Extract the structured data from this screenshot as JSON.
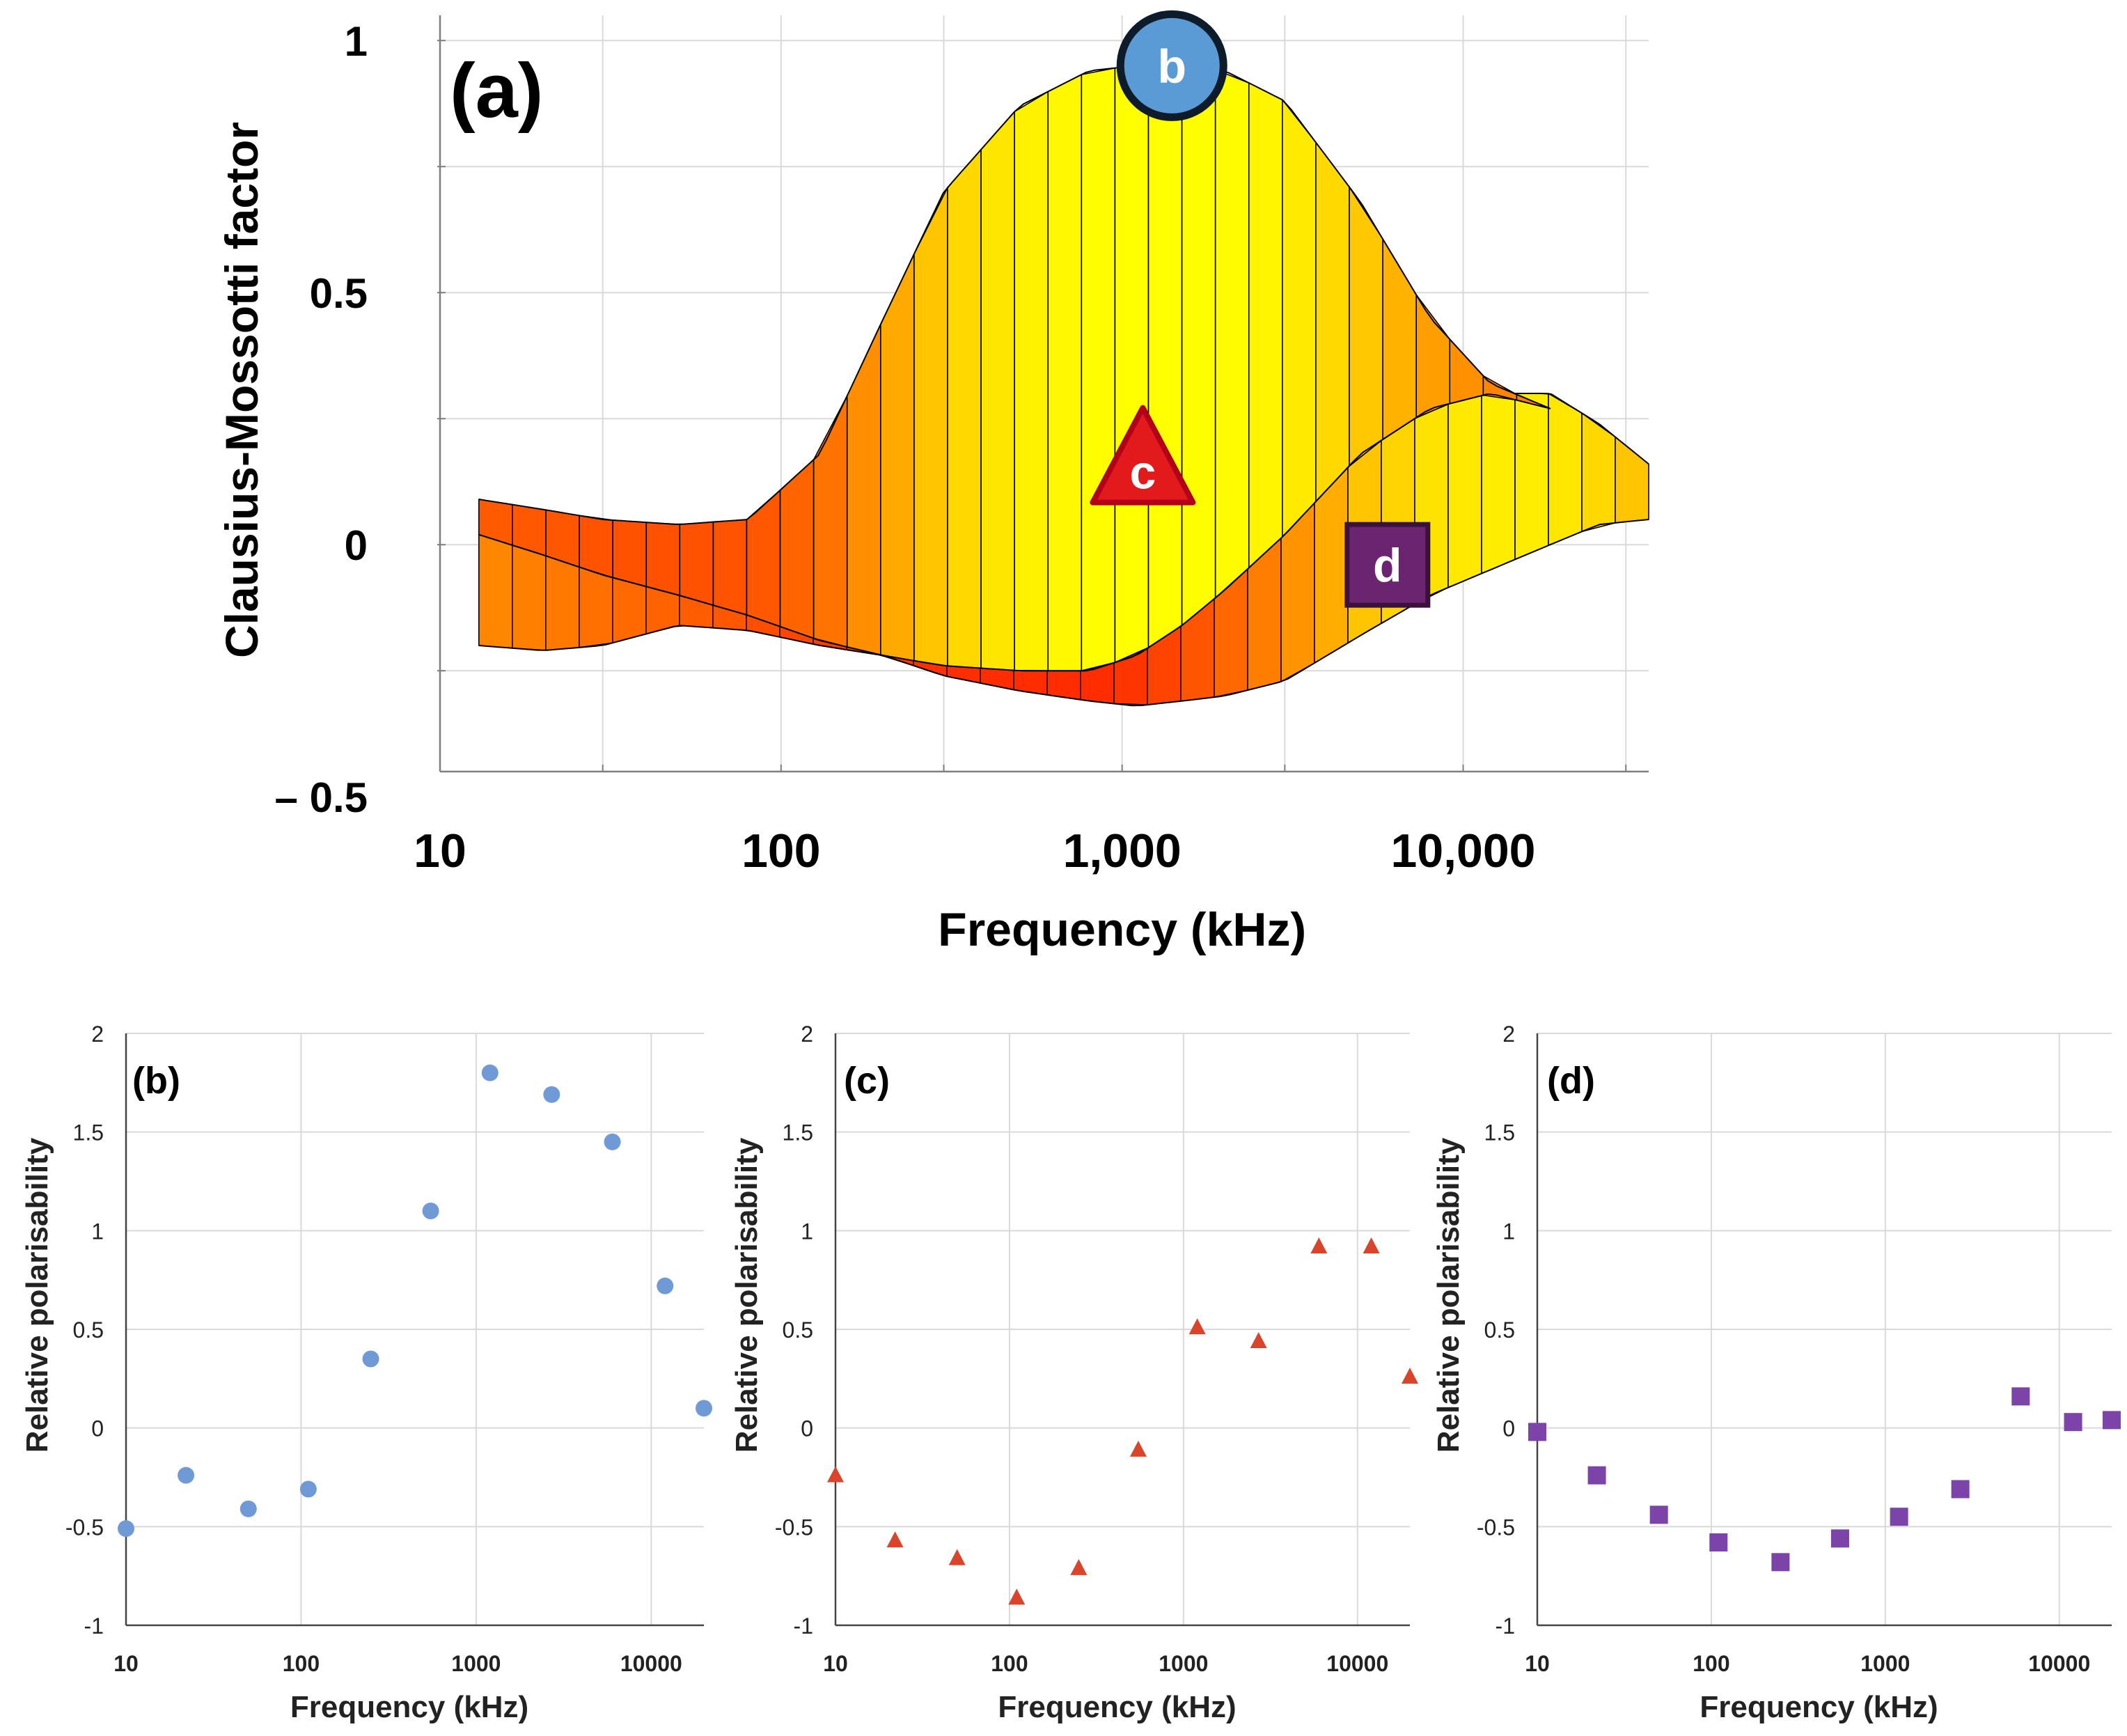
{
  "colors": {
    "yellow": "#ffff00",
    "orange": "#ff8c00",
    "red": "#ff1a00",
    "grid": "#d9d9d9",
    "axis": "#7f7f7f",
    "band_line": "#000000",
    "marker_b": "#5b9bd5",
    "marker_b_edge": "#0d1b2a",
    "marker_c": "#e31a1c",
    "marker_c_edge": "#b2001a",
    "marker_d": "#6b2570",
    "marker_d_edge": "#3a103d",
    "scatter_b": "#6f9ad6",
    "scatter_c": "#d9452b",
    "scatter_d": "#7c44a8"
  },
  "chart_data": [
    {
      "id": "a",
      "type": "area",
      "panel_label": "(a)",
      "title": "",
      "xlabel": "Frequency (kHz)",
      "ylabel": "Clausius-Mossotti factor",
      "xscale": "log",
      "xlim": [
        10,
        35000
      ],
      "ylim": [
        -0.5,
        1.0
      ],
      "x_ticks": [
        10,
        100,
        1000,
        10000
      ],
      "x_tick_labels": [
        "10",
        "100",
        "1,000",
        "10,000"
      ],
      "y_ticks": [
        1,
        0.5,
        0,
        -0.5
      ],
      "y_tick_labels": [
        "1",
        "0.5",
        "0",
        "– 0.5"
      ],
      "grid": true,
      "band_x_start": 13,
      "band_x_end": 35000,
      "band_count": 35,
      "series": [
        {
          "name": "b",
          "marker": "circle",
          "marker_label": "b",
          "marker_at": [
            1400,
            0.95
          ],
          "x": [
            13,
            20,
            30,
            50,
            80,
            130,
            200,
            300,
            500,
            800,
            1100,
            1500,
            2000,
            3000,
            5000,
            8000,
            12000,
            18000
          ],
          "upper": [
            0.09,
            0.07,
            0.05,
            0.04,
            0.05,
            0.18,
            0.45,
            0.7,
            0.87,
            0.94,
            0.95,
            0.95,
            0.94,
            0.88,
            0.68,
            0.45,
            0.32,
            0.27
          ],
          "lower": [
            0.02,
            -0.02,
            -0.06,
            -0.1,
            -0.14,
            -0.19,
            -0.22,
            -0.24,
            -0.25,
            -0.25,
            -0.22,
            -0.16,
            -0.09,
            0.02,
            0.18,
            0.27,
            0.3,
            0.27
          ]
        },
        {
          "name": "c",
          "marker": "triangle",
          "marker_label": "c",
          "marker_at": [
            1150,
            0.15
          ],
          "x": [
            13,
            20,
            30,
            50,
            80,
            130,
            200,
            300,
            500,
            800,
            1100,
            1500,
            2000,
            3000,
            5000,
            8000,
            12000,
            18000
          ],
          "upper": [
            0.09,
            0.07,
            0.05,
            0.04,
            0.05,
            0.18,
            0.45,
            0.7,
            0.87,
            0.94,
            0.95,
            0.95,
            0.94,
            0.88,
            0.68,
            0.45,
            0.32,
            0.27
          ],
          "lower": [
            0.02,
            -0.02,
            -0.06,
            -0.1,
            -0.14,
            -0.19,
            -0.22,
            -0.24,
            -0.25,
            -0.25,
            -0.22,
            -0.16,
            -0.09,
            0.02,
            0.18,
            0.27,
            0.3,
            0.27
          ]
        },
        {
          "name": "d",
          "marker": "square",
          "marker_label": "d",
          "marker_at": [
            6000,
            -0.04
          ],
          "x": [
            13,
            20,
            30,
            50,
            80,
            130,
            200,
            300,
            500,
            800,
            1100,
            1500,
            2000,
            3000,
            5000,
            8000,
            12000,
            18000,
            25000,
            35000
          ],
          "upper": [
            0.02,
            -0.02,
            -0.06,
            -0.1,
            -0.14,
            -0.19,
            -0.22,
            -0.24,
            -0.25,
            -0.25,
            -0.22,
            -0.16,
            -0.09,
            0.02,
            0.18,
            0.27,
            0.3,
            0.3,
            0.24,
            0.16
          ],
          "lower": [
            -0.2,
            -0.21,
            -0.2,
            -0.16,
            -0.17,
            -0.2,
            -0.22,
            -0.26,
            -0.29,
            -0.31,
            -0.32,
            -0.31,
            -0.3,
            -0.27,
            -0.18,
            -0.1,
            -0.05,
            0.0,
            0.04,
            0.05
          ]
        }
      ]
    },
    {
      "id": "b",
      "type": "scatter",
      "panel_label": "(b)",
      "xlabel": "Frequency (kHz)",
      "ylabel": "Relative polarisability",
      "xscale": "log",
      "xlim": [
        10,
        20000
      ],
      "ylim": [
        -1,
        2
      ],
      "x_ticks": [
        10,
        100,
        1000,
        10000
      ],
      "x_tick_labels": [
        "10",
        "100",
        "1000",
        "10000"
      ],
      "y_ticks": [
        2,
        1.5,
        1,
        0.5,
        0,
        -0.5,
        -1
      ],
      "y_tick_labels": [
        "2",
        "1.5",
        "1",
        "0.5",
        "0",
        "-0.5",
        "-1"
      ],
      "grid": true,
      "marker": "circle",
      "x": [
        10,
        22,
        50,
        110,
        250,
        550,
        1200,
        2700,
        6000,
        12000,
        20000
      ],
      "y": [
        -0.51,
        -0.24,
        -0.41,
        -0.31,
        0.35,
        1.1,
        1.8,
        1.69,
        1.45,
        0.72,
        0.1
      ]
    },
    {
      "id": "c",
      "type": "scatter",
      "panel_label": "(c)",
      "xlabel": "Frequency (kHz)",
      "ylabel": "Relative polarisability",
      "xscale": "log",
      "xlim": [
        10,
        20000
      ],
      "ylim": [
        -1,
        2
      ],
      "x_ticks": [
        10,
        100,
        1000,
        10000
      ],
      "x_tick_labels": [
        "10",
        "100",
        "1000",
        "10000"
      ],
      "y_ticks": [
        2,
        1.5,
        1,
        0.5,
        0,
        -0.5,
        -1
      ],
      "y_tick_labels": [
        "2",
        "1.5",
        "1",
        "0.5",
        "0",
        "-0.5",
        "-1"
      ],
      "grid": true,
      "marker": "triangle",
      "x": [
        10,
        22,
        50,
        110,
        250,
        550,
        1200,
        2700,
        6000,
        12000,
        20000
      ],
      "y": [
        -0.24,
        -0.57,
        -0.66,
        -0.86,
        -0.71,
        -0.11,
        0.51,
        0.44,
        0.92,
        0.92,
        0.26
      ]
    },
    {
      "id": "d",
      "type": "scatter",
      "panel_label": "(d)",
      "xlabel": "Frequency (kHz)",
      "ylabel": "Relative polarisability",
      "xscale": "log",
      "xlim": [
        10,
        20000
      ],
      "ylim": [
        -1,
        2
      ],
      "x_ticks": [
        10,
        100,
        1000,
        10000
      ],
      "x_tick_labels": [
        "10",
        "100",
        "1000",
        "10000"
      ],
      "y_ticks": [
        2,
        1.5,
        1,
        0.5,
        0,
        -0.5,
        -1
      ],
      "y_tick_labels": [
        "2",
        "1.5",
        "1",
        "0.5",
        "0",
        "-0.5",
        "-1"
      ],
      "grid": true,
      "marker": "square",
      "x": [
        10,
        22,
        50,
        110,
        250,
        550,
        1200,
        2700,
        6000,
        12000,
        20000
      ],
      "y": [
        -0.02,
        -0.24,
        -0.44,
        -0.58,
        -0.68,
        -0.56,
        -0.45,
        -0.31,
        0.16,
        0.03,
        0.04
      ]
    }
  ]
}
